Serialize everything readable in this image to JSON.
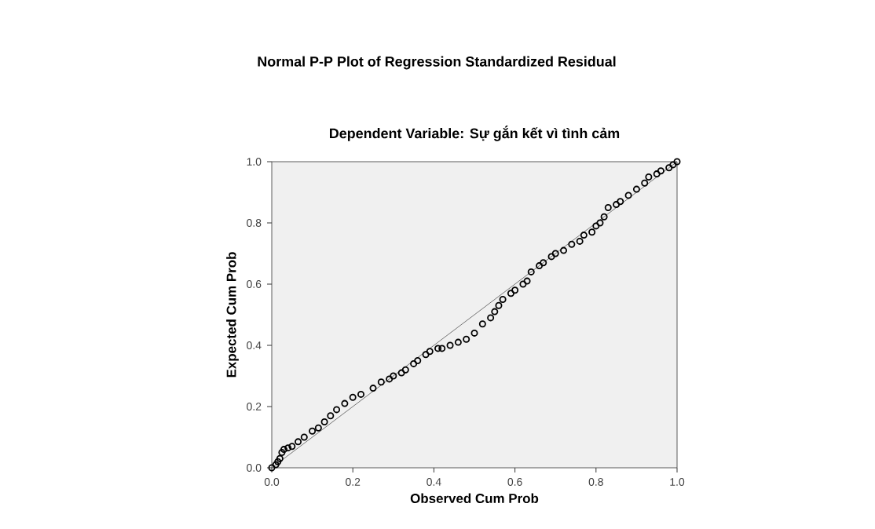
{
  "chart_data": {
    "type": "scatter",
    "title": "Normal P-P Plot of Regression Standardized Residual",
    "subtitle": "Dependent Variable: Sự gắn kết vì tình cảm",
    "xlabel": "Observed Cum Prob",
    "ylabel": "Expected Cum Prob",
    "marker": "circle",
    "xlim": [
      0,
      1
    ],
    "ylim": [
      0,
      1
    ],
    "xticks": [
      {
        "value": 0,
        "label": "0.0"
      },
      0.2,
      0.4,
      0.6,
      0.8,
      {
        "value": 1,
        "label": "1.0"
      }
    ],
    "yticks": [
      {
        "value": 0,
        "label": "0.0"
      },
      0.2,
      0.4,
      0.6,
      0.8,
      {
        "value": 1,
        "label": "1.0"
      }
    ],
    "series": [
      {
        "type": "line",
        "marker": "none",
        "color": "#555555",
        "x": [
          0,
          1
        ],
        "values": [
          0,
          1
        ]
      },
      {
        "color": "#000000",
        "x": [
          0.0,
          0.01,
          0.015,
          0.02,
          0.025,
          0.03,
          0.04,
          0.05,
          0.065,
          0.08,
          0.1,
          0.115,
          0.13,
          0.145,
          0.16,
          0.18,
          0.2,
          0.22,
          0.25,
          0.27,
          0.29,
          0.3,
          0.32,
          0.33,
          0.35,
          0.36,
          0.38,
          0.39,
          0.41,
          0.42,
          0.44,
          0.46,
          0.48,
          0.5,
          0.52,
          0.54,
          0.55,
          0.56,
          0.57,
          0.59,
          0.6,
          0.62,
          0.63,
          0.64,
          0.66,
          0.67,
          0.69,
          0.7,
          0.72,
          0.74,
          0.76,
          0.77,
          0.79,
          0.8,
          0.81,
          0.82,
          0.83,
          0.85,
          0.86,
          0.88,
          0.9,
          0.92,
          0.93,
          0.95,
          0.96,
          0.98,
          0.99,
          1.0
        ],
        "values": [
          0.0,
          0.01,
          0.02,
          0.03,
          0.05,
          0.06,
          0.065,
          0.07,
          0.085,
          0.1,
          0.12,
          0.13,
          0.15,
          0.17,
          0.19,
          0.21,
          0.23,
          0.24,
          0.26,
          0.28,
          0.29,
          0.3,
          0.31,
          0.32,
          0.34,
          0.35,
          0.37,
          0.38,
          0.39,
          0.39,
          0.4,
          0.41,
          0.42,
          0.44,
          0.47,
          0.49,
          0.51,
          0.53,
          0.55,
          0.57,
          0.58,
          0.6,
          0.61,
          0.64,
          0.66,
          0.67,
          0.69,
          0.7,
          0.71,
          0.73,
          0.74,
          0.76,
          0.77,
          0.79,
          0.8,
          0.82,
          0.85,
          0.86,
          0.87,
          0.89,
          0.91,
          0.93,
          0.95,
          0.96,
          0.97,
          0.98,
          0.99,
          1.0
        ]
      }
    ]
  }
}
